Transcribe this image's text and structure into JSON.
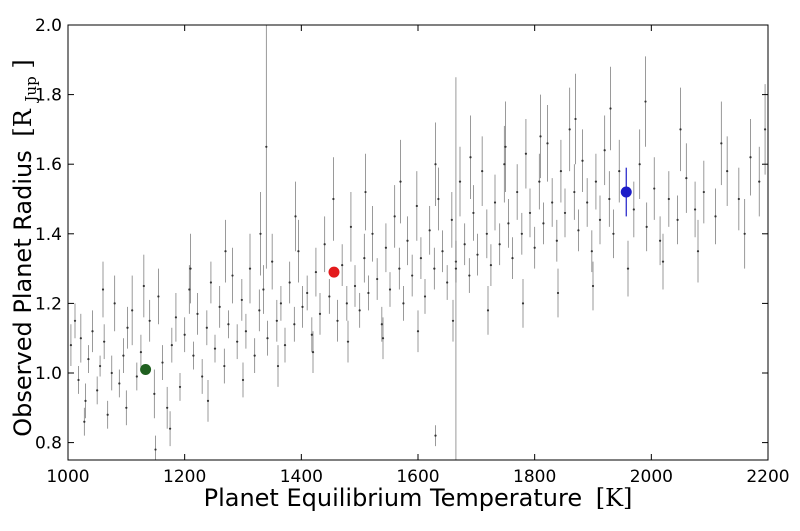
{
  "chart_data": {
    "type": "scatter",
    "xlabel": "Planet Equilibrium Temperature",
    "xlabel_unit": "[K]",
    "ylabel": "Observed Planet Radius",
    "ylabel_unit_open": "[R",
    "ylabel_unit_sub": "Jup",
    "ylabel_unit_close": "]",
    "xlim": [
      1000,
      2200
    ],
    "ylim": [
      0.75,
      2.0
    ],
    "x_ticks": [
      "1000",
      "1200",
      "1400",
      "1600",
      "1800",
      "2000",
      "2200"
    ],
    "y_ticks": [
      "0.8",
      "1.0",
      "1.2",
      "1.4",
      "1.6",
      "1.8",
      "2.0"
    ],
    "grid": false,
    "legend": "none",
    "background_series": {
      "name": "",
      "color": "#555555",
      "points_with_errorbars": [
        [
          1005,
          1.08,
          0.06
        ],
        [
          1012,
          1.15,
          0.05
        ],
        [
          1018,
          0.98,
          0.04
        ],
        [
          1022,
          1.1,
          0.07
        ],
        [
          1030,
          0.92,
          0.05
        ],
        [
          1035,
          1.04,
          0.04
        ],
        [
          1042,
          1.12,
          0.06
        ],
        [
          1050,
          0.95,
          0.04
        ],
        [
          1055,
          1.02,
          0.03
        ],
        [
          1062,
          1.09,
          0.05
        ],
        [
          1068,
          0.88,
          0.04
        ],
        [
          1075,
          1.0,
          0.05
        ],
        [
          1080,
          1.2,
          0.08
        ],
        [
          1088,
          0.97,
          0.04
        ],
        [
          1095,
          1.05,
          0.05
        ],
        [
          1102,
          1.13,
          0.06
        ],
        [
          1110,
          1.18,
          0.1
        ],
        [
          1118,
          0.99,
          0.04
        ],
        [
          1125,
          1.06,
          0.05
        ],
        [
          1140,
          1.15,
          0.06
        ],
        [
          1148,
          0.94,
          0.07
        ],
        [
          1155,
          1.22,
          0.08
        ],
        [
          1162,
          1.03,
          0.05
        ],
        [
          1170,
          0.9,
          0.06
        ],
        [
          1178,
          1.08,
          0.05
        ],
        [
          1185,
          1.16,
          0.07
        ],
        [
          1192,
          0.96,
          0.04
        ],
        [
          1200,
          1.11,
          0.05
        ],
        [
          1208,
          1.24,
          0.07
        ],
        [
          1215,
          1.05,
          0.04
        ],
        [
          1222,
          1.17,
          0.06
        ],
        [
          1230,
          0.99,
          0.05
        ],
        [
          1238,
          1.13,
          0.05
        ],
        [
          1245,
          1.26,
          0.06
        ],
        [
          1252,
          1.07,
          0.04
        ],
        [
          1260,
          1.19,
          0.06
        ],
        [
          1268,
          1.02,
          0.05
        ],
        [
          1275,
          1.14,
          0.04
        ],
        [
          1282,
          1.28,
          0.08
        ],
        [
          1290,
          1.09,
          0.05
        ],
        [
          1298,
          1.21,
          0.06
        ],
        [
          1305,
          1.12,
          0.05
        ],
        [
          1312,
          1.3,
          0.1
        ],
        [
          1320,
          1.05,
          0.05
        ],
        [
          1328,
          1.18,
          0.06
        ],
        [
          1335,
          1.24,
          0.07
        ],
        [
          1342,
          1.1,
          0.05
        ],
        [
          1350,
          1.32,
          0.08
        ],
        [
          1358,
          1.15,
          0.06
        ],
        [
          1365,
          1.2,
          0.05
        ],
        [
          1372,
          1.08,
          0.05
        ],
        [
          1380,
          1.26,
          0.06
        ],
        [
          1388,
          1.14,
          0.05
        ],
        [
          1395,
          1.35,
          0.09
        ],
        [
          1402,
          1.19,
          0.06
        ],
        [
          1410,
          1.23,
          0.05
        ],
        [
          1418,
          1.11,
          0.05
        ],
        [
          1425,
          1.29,
          0.07
        ],
        [
          1432,
          1.17,
          0.06
        ],
        [
          1440,
          1.37,
          0.08
        ],
        [
          1448,
          1.22,
          0.05
        ],
        [
          1462,
          1.15,
          0.06
        ],
        [
          1470,
          1.31,
          0.06
        ],
        [
          1478,
          1.2,
          0.05
        ],
        [
          1485,
          1.42,
          0.1
        ],
        [
          1492,
          1.25,
          0.06
        ],
        [
          1500,
          1.18,
          0.05
        ],
        [
          1508,
          1.33,
          0.07
        ],
        [
          1515,
          1.23,
          0.05
        ],
        [
          1522,
          1.4,
          0.08
        ],
        [
          1530,
          1.27,
          0.06
        ],
        [
          1538,
          1.14,
          0.05
        ],
        [
          1545,
          1.36,
          0.07
        ],
        [
          1552,
          1.24,
          0.05
        ],
        [
          1560,
          1.45,
          0.09
        ],
        [
          1568,
          1.3,
          0.06
        ],
        [
          1575,
          1.2,
          0.05
        ],
        [
          1582,
          1.38,
          0.07
        ],
        [
          1590,
          1.28,
          0.06
        ],
        [
          1598,
          1.48,
          0.1
        ],
        [
          1605,
          1.33,
          0.06
        ],
        [
          1612,
          1.22,
          0.05
        ],
        [
          1620,
          1.41,
          0.07
        ],
        [
          1628,
          1.3,
          0.06
        ],
        [
          1635,
          1.5,
          0.09
        ],
        [
          1642,
          1.35,
          0.06
        ],
        [
          1650,
          1.26,
          0.05
        ],
        [
          1658,
          1.44,
          0.08
        ],
        [
          1665,
          1.32,
          0.06
        ],
        [
          1672,
          1.55,
          0.1
        ],
        [
          1680,
          1.37,
          0.06
        ],
        [
          1688,
          1.28,
          0.05
        ],
        [
          1695,
          1.46,
          0.08
        ],
        [
          1702,
          1.34,
          0.06
        ],
        [
          1710,
          1.58,
          0.1
        ],
        [
          1718,
          1.4,
          0.07
        ],
        [
          1725,
          1.31,
          0.06
        ],
        [
          1732,
          1.49,
          0.08
        ],
        [
          1740,
          1.37,
          0.06
        ],
        [
          1748,
          1.6,
          0.11
        ],
        [
          1755,
          1.43,
          0.07
        ],
        [
          1762,
          1.33,
          0.06
        ],
        [
          1770,
          1.52,
          0.08
        ],
        [
          1778,
          1.4,
          0.06
        ],
        [
          1785,
          1.63,
          0.1
        ],
        [
          1792,
          1.46,
          0.07
        ],
        [
          1800,
          1.36,
          0.06
        ],
        [
          1808,
          1.55,
          0.08
        ],
        [
          1815,
          1.43,
          0.06
        ],
        [
          1822,
          1.66,
          0.11
        ],
        [
          1830,
          1.49,
          0.07
        ],
        [
          1838,
          1.38,
          0.06
        ],
        [
          1845,
          1.58,
          0.09
        ],
        [
          1852,
          1.46,
          0.07
        ],
        [
          1860,
          1.7,
          0.12
        ],
        [
          1868,
          1.52,
          0.08
        ],
        [
          1875,
          1.41,
          0.06
        ],
        [
          1882,
          1.61,
          0.09
        ],
        [
          1890,
          1.49,
          0.07
        ],
        [
          1898,
          1.35,
          0.06
        ],
        [
          1905,
          1.55,
          0.08
        ],
        [
          1912,
          1.44,
          0.07
        ],
        [
          1920,
          1.64,
          0.1
        ],
        [
          1928,
          1.5,
          0.08
        ],
        [
          1935,
          1.4,
          0.07
        ],
        [
          1945,
          1.58,
          0.09
        ],
        [
          1970,
          1.47,
          0.08
        ],
        [
          1980,
          1.6,
          0.1
        ],
        [
          1992,
          1.42,
          0.07
        ],
        [
          2005,
          1.53,
          0.09
        ],
        [
          2015,
          1.38,
          0.07
        ],
        [
          2030,
          1.5,
          0.08
        ],
        [
          2045,
          1.44,
          0.07
        ],
        [
          2060,
          1.56,
          0.1
        ],
        [
          2075,
          1.47,
          0.08
        ],
        [
          2090,
          1.52,
          0.09
        ],
        [
          2110,
          1.45,
          0.08
        ],
        [
          2130,
          1.58,
          0.1
        ],
        [
          2150,
          1.5,
          0.09
        ],
        [
          2170,
          1.62,
          0.11
        ],
        [
          2185,
          1.55,
          0.1
        ],
        [
          1060,
          1.24,
          0.08
        ],
        [
          1100,
          0.9,
          0.05
        ],
        [
          1130,
          1.25,
          0.09
        ],
        [
          1175,
          0.84,
          0.05
        ],
        [
          1210,
          1.3,
          0.1
        ],
        [
          1240,
          0.92,
          0.06
        ],
        [
          1270,
          1.35,
          0.09
        ],
        [
          1300,
          0.98,
          0.05
        ],
        [
          1330,
          1.4,
          0.12
        ],
        [
          1360,
          1.02,
          0.06
        ],
        [
          1390,
          1.45,
          0.1
        ],
        [
          1420,
          1.06,
          0.06
        ],
        [
          1455,
          1.5,
          0.12
        ],
        [
          1480,
          1.09,
          0.06
        ],
        [
          1510,
          1.52,
          0.11
        ],
        [
          1540,
          1.1,
          0.06
        ],
        [
          1570,
          1.55,
          0.12
        ],
        [
          1600,
          1.12,
          0.06
        ],
        [
          1630,
          1.6,
          0.12
        ],
        [
          1660,
          1.15,
          0.06
        ],
        [
          1690,
          1.62,
          0.12
        ],
        [
          1720,
          1.18,
          0.07
        ],
        [
          1750,
          1.65,
          0.13
        ],
        [
          1780,
          1.2,
          0.07
        ],
        [
          1810,
          1.68,
          0.12
        ],
        [
          1840,
          1.23,
          0.07
        ],
        [
          1870,
          1.73,
          0.13
        ],
        [
          1900,
          1.25,
          0.07
        ],
        [
          1930,
          1.76,
          0.12
        ],
        [
          1960,
          1.3,
          0.08
        ],
        [
          1990,
          1.78,
          0.13
        ],
        [
          2020,
          1.32,
          0.08
        ],
        [
          2050,
          1.7,
          0.12
        ],
        [
          2080,
          1.35,
          0.09
        ],
        [
          2120,
          1.66,
          0.12
        ],
        [
          2160,
          1.4,
          0.1
        ],
        [
          2195,
          1.7,
          0.13
        ],
        [
          1340,
          1.65,
          0.35
        ],
        [
          1665,
          1.3,
          0.55
        ],
        [
          1630,
          0.82,
          0.03
        ],
        [
          1150,
          0.78,
          0.04
        ],
        [
          1028,
          0.86,
          0.04
        ]
      ]
    },
    "highlighted_points": [
      {
        "x": 1133,
        "y": 1.01,
        "yerr": 0.01,
        "color": "#1f5f1f"
      },
      {
        "x": 1456,
        "y": 1.29,
        "yerr": 0.01,
        "color": "#e31a1c"
      },
      {
        "x": 1957,
        "y": 1.52,
        "yerr": 0.07,
        "color": "#1c1cc8"
      }
    ]
  }
}
